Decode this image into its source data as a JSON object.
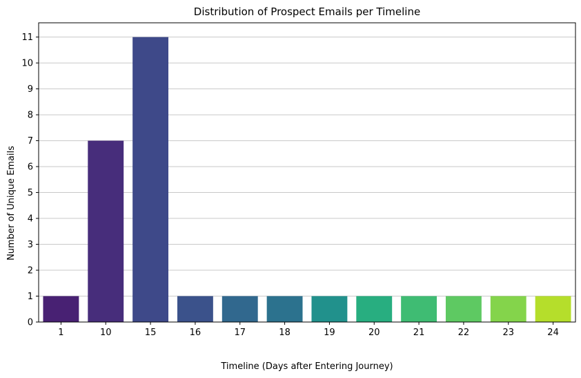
{
  "chart_data": {
    "type": "bar",
    "title": "Distribution of Prospect Emails per Timeline",
    "xlabel": "Timeline (Days after Entering Journey)",
    "ylabel": "Number of Unique Emails",
    "categories": [
      "1",
      "10",
      "15",
      "16",
      "17",
      "18",
      "19",
      "20",
      "21",
      "22",
      "23",
      "24"
    ],
    "values": [
      1,
      7,
      11,
      1,
      1,
      1,
      1,
      1,
      1,
      1,
      1,
      1
    ],
    "colors": [
      "#482173",
      "#472d7b",
      "#3e4989",
      "#3b528b",
      "#31688e",
      "#2c728e",
      "#21918c",
      "#28ae80",
      "#3fbc73",
      "#5ec962",
      "#84d44b",
      "#b5de2b"
    ],
    "ylim": [
      0,
      11.55
    ],
    "yticks": [
      0,
      1,
      2,
      3,
      4,
      5,
      6,
      7,
      8,
      9,
      10,
      11
    ],
    "grid": "y"
  }
}
